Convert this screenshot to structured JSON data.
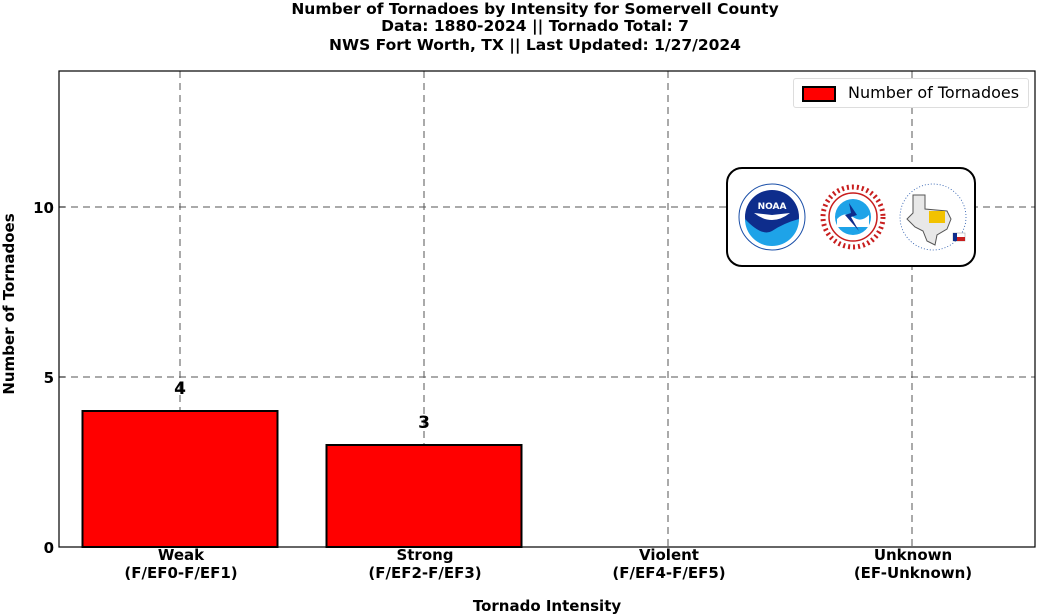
{
  "title": {
    "line1": "Number of Tornadoes by Intensity for Somervell County",
    "line2": "Data: 1880-2024 || Tornado Total: 7",
    "line3": "NWS Fort Worth, TX || Last Updated: 1/27/2024"
  },
  "chart_data": {
    "type": "bar",
    "categories": [
      [
        "Weak",
        "(F/EF0-F/EF1)"
      ],
      [
        "Strong",
        "(F/EF2-F/EF3)"
      ],
      [
        "Violent",
        "(F/EF4-F/EF5)"
      ],
      [
        "Unknown",
        "(EF-Unknown)"
      ]
    ],
    "values": [
      4,
      3,
      0,
      0
    ],
    "data_labels": [
      "4",
      "3",
      "",
      ""
    ],
    "series": [
      {
        "name": "Number of Tornadoes",
        "values": [
          4,
          3,
          0,
          0
        ]
      }
    ],
    "xlabel": "Tornado Intensity",
    "ylabel": "Number of Tornadoes",
    "ylim": [
      0,
      14
    ],
    "yticks": [
      0,
      5,
      10
    ],
    "grid": true,
    "legend": "top-right",
    "bar_color": "#ff0000"
  },
  "logos": {
    "noaa_text": "NOAA",
    "nws_ring": "NATIONAL WEATHER SERVICE",
    "fwd_text": "Protecting Life And Property Across North Texas",
    "fwd_since": "Since 1870"
  }
}
